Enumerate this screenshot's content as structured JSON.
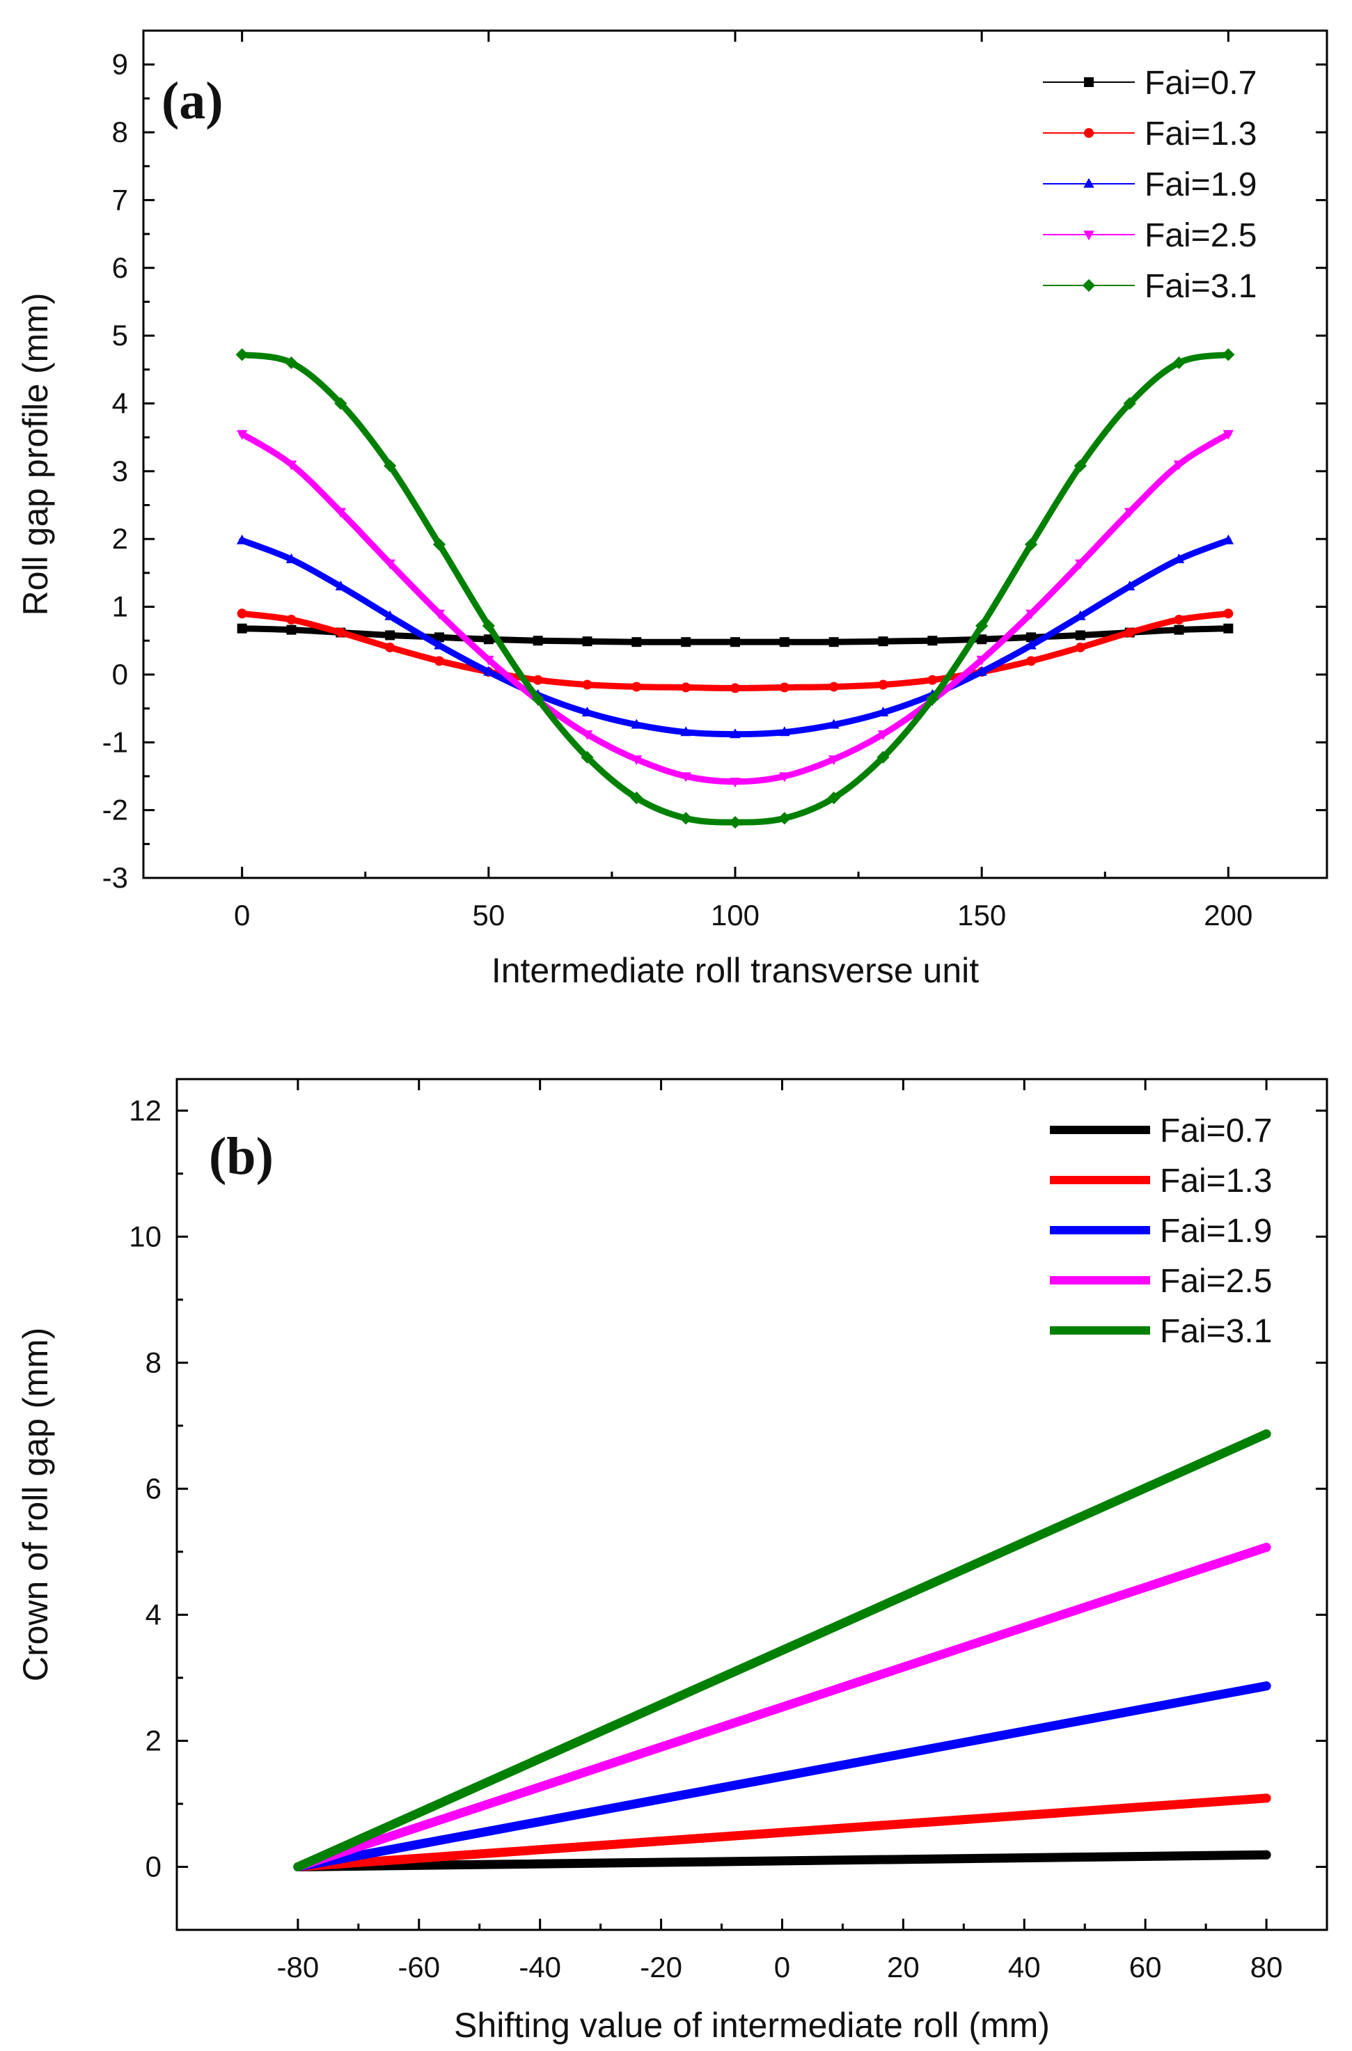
{
  "chart_data": [
    {
      "type": "line",
      "panel_label": "(a)",
      "title": "",
      "xlabel": "Intermediate roll transverse unit",
      "ylabel": "Roll gap profile (mm)",
      "xlim": [
        -20,
        220
      ],
      "ylim": [
        -3,
        9.5
      ],
      "xticks": [
        0,
        50,
        100,
        150,
        200
      ],
      "yticks": [
        -3,
        -2,
        -1,
        0,
        1,
        2,
        3,
        4,
        5,
        6,
        7,
        8,
        9
      ],
      "grid": false,
      "legend_position": "top-right",
      "x": [
        0,
        10,
        20,
        30,
        40,
        50,
        60,
        70,
        80,
        90,
        100,
        110,
        120,
        130,
        140,
        150,
        160,
        170,
        180,
        190,
        200
      ],
      "series": [
        {
          "name": "Fai=0.7",
          "color": "#000000",
          "marker": "square",
          "values": [
            0.68,
            0.66,
            0.62,
            0.58,
            0.55,
            0.52,
            0.5,
            0.49,
            0.48,
            0.48,
            0.48,
            0.48,
            0.48,
            0.49,
            0.5,
            0.52,
            0.55,
            0.58,
            0.62,
            0.66,
            0.68
          ]
        },
        {
          "name": "Fai=1.3",
          "color": "#ff0000",
          "marker": "circle",
          "values": [
            0.9,
            0.81,
            0.62,
            0.4,
            0.2,
            0.04,
            -0.08,
            -0.15,
            -0.18,
            -0.19,
            -0.2,
            -0.19,
            -0.18,
            -0.15,
            -0.08,
            0.04,
            0.2,
            0.4,
            0.62,
            0.81,
            0.9
          ]
        },
        {
          "name": "Fai=1.9",
          "color": "#0000ff",
          "marker": "triangle-up",
          "values": [
            1.98,
            1.7,
            1.3,
            0.86,
            0.43,
            0.04,
            -0.3,
            -0.56,
            -0.74,
            -0.85,
            -0.88,
            -0.85,
            -0.74,
            -0.56,
            -0.3,
            0.04,
            0.43,
            0.86,
            1.3,
            1.7,
            1.98
          ]
        },
        {
          "name": "Fai=2.5",
          "color": "#ff00ff",
          "marker": "triangle-down",
          "values": [
            3.55,
            3.1,
            2.4,
            1.64,
            0.9,
            0.22,
            -0.38,
            -0.88,
            -1.25,
            -1.5,
            -1.58,
            -1.5,
            -1.25,
            -0.88,
            -0.38,
            0.22,
            0.9,
            1.64,
            2.4,
            3.1,
            3.55
          ]
        },
        {
          "name": "Fai=3.1",
          "color": "#008000",
          "marker": "diamond",
          "values": [
            4.72,
            4.6,
            4.0,
            3.08,
            1.92,
            0.72,
            -0.36,
            -1.22,
            -1.82,
            -2.12,
            -2.18,
            -2.12,
            -1.82,
            -1.22,
            -0.36,
            0.72,
            1.92,
            3.08,
            4.0,
            4.6,
            4.72
          ]
        }
      ]
    },
    {
      "type": "line",
      "panel_label": "(b)",
      "title": "",
      "xlabel": "Shifting value of intermediate roll (mm)",
      "ylabel": "Crown of roll gap (mm)",
      "xlim": [
        -100,
        90
      ],
      "ylim": [
        -1,
        12.5
      ],
      "xticks": [
        -80,
        -60,
        -40,
        -20,
        0,
        20,
        40,
        60,
        80
      ],
      "yticks": [
        0,
        2,
        4,
        6,
        8,
        10,
        12
      ],
      "grid": false,
      "legend_position": "top-right",
      "x": [
        -80,
        80
      ],
      "series": [
        {
          "name": "Fai=0.7",
          "color": "#000000",
          "values": [
            0,
            0.19
          ]
        },
        {
          "name": "Fai=1.3",
          "color": "#ff0000",
          "values": [
            0,
            1.09
          ]
        },
        {
          "name": "Fai=1.9",
          "color": "#0000ff",
          "values": [
            0,
            2.87
          ]
        },
        {
          "name": "Fai=2.5",
          "color": "#ff00ff",
          "values": [
            0,
            5.07
          ]
        },
        {
          "name": "Fai=3.1",
          "color": "#008000",
          "values": [
            0,
            6.87
          ]
        }
      ]
    }
  ]
}
